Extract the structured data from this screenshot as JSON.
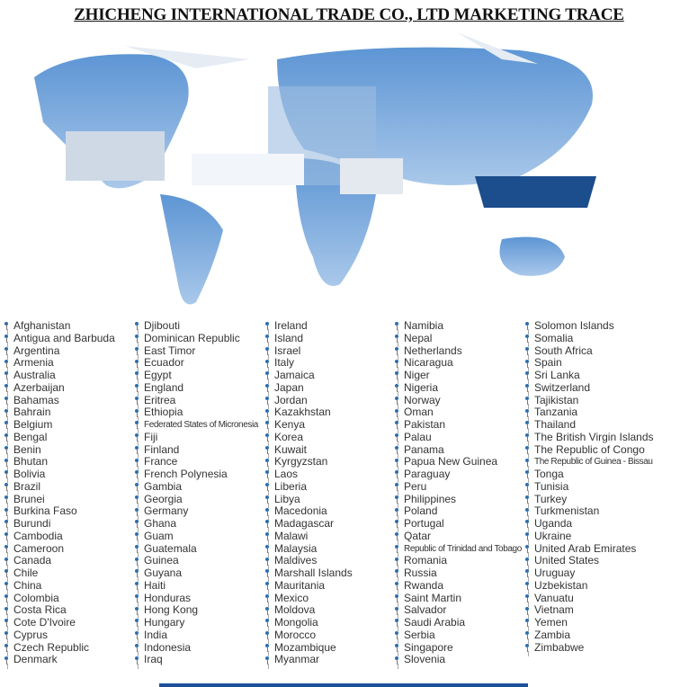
{
  "title": "ZHICHENG INTERNATIONAL TRADE CO., LTD MARKETING TRACE",
  "colors": {
    "map": "#4a86c8",
    "pin": "#2a6fb0",
    "bar": "#1e4f9c"
  },
  "icon": "map-pin-icon",
  "columns": [
    [
      "Afghanistan",
      "Antigua and Barbuda",
      "Argentina",
      "Armenia",
      "Australia",
      "Azerbaijan",
      "Bahamas",
      "Bahrain",
      "Belgium",
      "Bengal",
      "Benin",
      "Bhutan",
      "Bolivia",
      "Brazil",
      "Brunei",
      "Burkina Faso",
      "Burundi",
      "Cambodia",
      "Cameroon",
      "Canada",
      "Chile",
      "China",
      "Colombia",
      "Costa Rica",
      "Cote D'Ivoire",
      "Cyprus",
      "Czech Republic",
      "Denmark"
    ],
    [
      "Djibouti",
      "Dominican Republic",
      "East Timor",
      "Ecuador",
      "Egypt",
      "England",
      "Eritrea",
      "Ethiopia",
      "Federated States of Micronesia",
      "Fiji",
      "Finland",
      "France",
      "French Polynesia",
      "Gambia",
      "Georgia",
      "Germany",
      "Ghana",
      "Guam",
      "Guatemala",
      "Guinea",
      "Guyana",
      "Haiti",
      "Honduras",
      "Hong Kong",
      "Hungary",
      "India",
      "Indonesia",
      "Iraq"
    ],
    [
      "Ireland",
      "Island",
      "Israel",
      "Italy",
      "Jamaica",
      "Japan",
      "Jordan",
      "Kazakhstan",
      "Kenya",
      "Korea",
      "Kuwait",
      "Kyrgyzstan",
      "Laos",
      "Liberia",
      "Libya",
      "Macedonia",
      "Madagascar",
      "Malawi",
      "Malaysia",
      "Maldives",
      "Marshall Islands",
      "Mauritania",
      "Mexico",
      "Moldova",
      "Mongolia",
      "Morocco",
      "Mozambique",
      "Myanmar"
    ],
    [
      "Namibia",
      "Nepal",
      "Netherlands",
      "Nicaragua",
      "Niger",
      "Nigeria",
      "Norway",
      "Oman",
      "Pakistan",
      "Palau",
      "Panama",
      "Papua New Guinea",
      "Paraguay",
      "Peru",
      "Philippines",
      "Poland",
      "Portugal",
      "Qatar",
      "Republic of Trinidad and Tobago",
      "Romania",
      "Russia",
      "Rwanda",
      "Saint Martin",
      "Salvador",
      "Saudi Arabia",
      "Serbia",
      "Singapore",
      "Slovenia"
    ],
    [
      "Solomon Islands",
      "Somalia",
      "South Africa",
      "Spain",
      "Sri Lanka",
      "Switzerland",
      "Tajikistan",
      "Tanzania",
      "Thailand",
      "The British Virgin Islands",
      "The Republic of Congo",
      "The Republic of Guinea - Bissau",
      "Tonga",
      "Tunisia",
      "Turkey",
      "Turkmenistan",
      "Uganda",
      "Ukraine",
      "United Arab Emirates",
      "United States",
      "Uruguay",
      "Uzbekistan",
      "Vanuatu",
      "Vietnam",
      "Yemen",
      "Zambia",
      "Zimbabwe"
    ]
  ]
}
